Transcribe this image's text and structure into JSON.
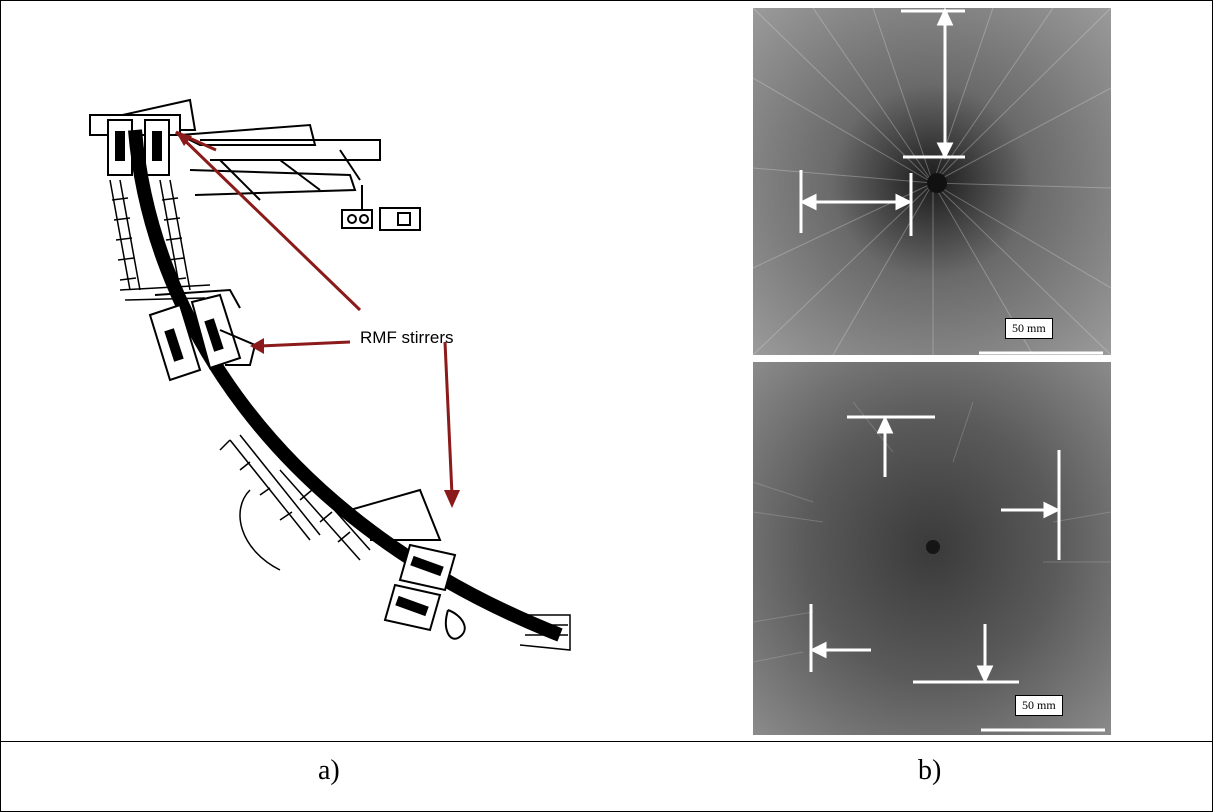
{
  "panels": {
    "a": {
      "caption": "a)",
      "annotation": "RMF stirrers",
      "arrow_color": "#8b1a1a"
    },
    "b": {
      "caption": "b)",
      "top_scale_bar": "50 mm",
      "bottom_scale_bar": "50 mm"
    }
  },
  "colors": {
    "border": "#000000",
    "annotation_arrow": "#8b1a1a",
    "macrograph_background": "#2a2a2a",
    "macrograph_markings": "#ffffff"
  }
}
